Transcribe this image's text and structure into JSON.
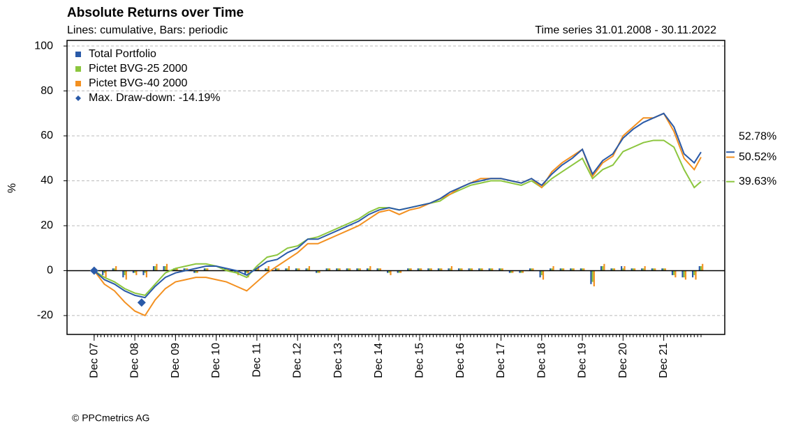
{
  "chart_data": {
    "type": "line",
    "title": "Absolute Returns over Time",
    "subtitle": "Lines: cumulative, Bars: periodic",
    "period": "Time series 31.01.2008 - 30.11.2022",
    "y_label": "%",
    "footer": "© PPCmetrics AG",
    "grid": true,
    "legend": "upper left",
    "xlim": [
      "2007-04",
      "2023-06"
    ],
    "ylim": [
      -28.4,
      102.5
    ],
    "yticks": [
      -20,
      0,
      20,
      40,
      60,
      80,
      100
    ],
    "xticks": [
      {
        "value": "2007-12",
        "label": "Dec 07"
      },
      {
        "value": "2008-12",
        "label": "Dec 08"
      },
      {
        "value": "2009-12",
        "label": "Dec 09"
      },
      {
        "value": "2010-12",
        "label": "Dec 10"
      },
      {
        "value": "2011-12",
        "label": "Dec 11"
      },
      {
        "value": "2012-12",
        "label": "Dec 12"
      },
      {
        "value": "2013-12",
        "label": "Dec 13"
      },
      {
        "value": "2014-12",
        "label": "Dec 14"
      },
      {
        "value": "2015-12",
        "label": "Dec 15"
      },
      {
        "value": "2016-12",
        "label": "Dec 16"
      },
      {
        "value": "2017-12",
        "label": "Dec 17"
      },
      {
        "value": "2018-12",
        "label": "Dec 18"
      },
      {
        "value": "2019-12",
        "label": "Dec 19"
      },
      {
        "value": "2020-12",
        "label": "Dec 20"
      },
      {
        "value": "2021-12",
        "label": "Dec 21"
      }
    ],
    "x": [
      "2007-12",
      "2008-03",
      "2008-06",
      "2008-09",
      "2008-12",
      "2009-03",
      "2009-06",
      "2009-09",
      "2009-12",
      "2010-03",
      "2010-06",
      "2010-09",
      "2010-12",
      "2011-03",
      "2011-06",
      "2011-09",
      "2011-12",
      "2012-03",
      "2012-06",
      "2012-09",
      "2012-12",
      "2013-03",
      "2013-06",
      "2013-09",
      "2013-12",
      "2014-03",
      "2014-06",
      "2014-09",
      "2014-12",
      "2015-03",
      "2015-06",
      "2015-09",
      "2015-12",
      "2016-03",
      "2016-06",
      "2016-09",
      "2016-12",
      "2017-03",
      "2017-06",
      "2017-09",
      "2017-12",
      "2018-03",
      "2018-06",
      "2018-09",
      "2018-12",
      "2019-03",
      "2019-06",
      "2019-09",
      "2019-12",
      "2020-03",
      "2020-06",
      "2020-09",
      "2020-12",
      "2021-03",
      "2021-06",
      "2021-09",
      "2021-12",
      "2022-03",
      "2022-06",
      "2022-09",
      "2022-11"
    ],
    "series": [
      {
        "name": "Total Portfolio",
        "color": "#2a5aa8",
        "last_value_label": "52.78%",
        "values": [
          0,
          -4,
          -6,
          -9,
          -11,
          -12,
          -7,
          -3,
          -1,
          0,
          1,
          2,
          2,
          1,
          0,
          -2,
          1,
          4,
          5,
          8,
          10,
          14,
          14,
          16,
          18,
          20,
          22,
          25,
          27,
          28,
          27,
          28,
          29,
          30,
          32,
          35,
          37,
          39,
          40,
          41,
          41,
          40,
          39,
          41,
          38,
          43,
          47,
          50,
          54,
          43,
          49,
          52,
          59,
          63,
          66,
          68,
          70,
          64,
          52,
          48,
          52.78
        ],
        "periodic": [
          null,
          -2,
          1,
          -3,
          -1,
          -2,
          2,
          2,
          1,
          1,
          -1,
          1,
          0,
          1,
          -1,
          -2,
          1,
          1,
          1,
          1,
          1,
          1,
          -1,
          1,
          1,
          1,
          1,
          1,
          1,
          -1,
          -1,
          1,
          1,
          1,
          1,
          1,
          1,
          1,
          1,
          1,
          1,
          -1,
          -1,
          1,
          -3,
          1,
          1,
          1,
          1,
          -6,
          2,
          1,
          2,
          1,
          1,
          1,
          1,
          -2,
          -3,
          -3,
          2
        ]
      },
      {
        "name": "Pictet BVG-25 2000",
        "color": "#8cc63e",
        "last_value_label": "39.63%",
        "values": [
          0,
          -3,
          -5,
          -8,
          -10,
          -11,
          -6,
          -1,
          1,
          2,
          3,
          3,
          2,
          0,
          -1,
          -3,
          2,
          6,
          7,
          10,
          11,
          14,
          15,
          17,
          19,
          21,
          23,
          26,
          28,
          28,
          27,
          28,
          29,
          30,
          31,
          34,
          36,
          38,
          39,
          40,
          40,
          39,
          38,
          40,
          37,
          41,
          44,
          47,
          50,
          41,
          45,
          47,
          53,
          55,
          57,
          58,
          58,
          55,
          45,
          37,
          39.63
        ],
        "periodic": [
          null,
          -1,
          1,
          -2,
          -1,
          -1,
          2,
          2,
          1,
          1,
          -1,
          1,
          0,
          1,
          -1,
          -1,
          1,
          1,
          1,
          1,
          1,
          1,
          -1,
          1,
          1,
          1,
          1,
          1,
          1,
          -1,
          -1,
          1,
          1,
          1,
          1,
          1,
          1,
          1,
          1,
          1,
          1,
          -1,
          -1,
          1,
          -2,
          1,
          1,
          1,
          1,
          -5,
          2,
          1,
          1,
          1,
          1,
          1,
          1,
          -2,
          -3,
          -2,
          2
        ]
      },
      {
        "name": "Pictet BVG-40 2000",
        "color": "#f39020",
        "last_value_label": "50.52%",
        "values": [
          0,
          -6,
          -9,
          -14,
          -18,
          -20,
          -13,
          -8,
          -5,
          -4,
          -3,
          -3,
          -4,
          -5,
          -7,
          -9,
          -5,
          -1,
          2,
          5,
          8,
          12,
          12,
          14,
          16,
          18,
          20,
          23,
          26,
          27,
          25,
          27,
          28,
          30,
          32,
          34,
          37,
          39,
          41,
          41,
          41,
          40,
          39,
          41,
          37,
          44,
          48,
          51,
          54,
          42,
          48,
          51,
          60,
          64,
          68,
          68,
          70,
          62,
          50,
          45,
          50.52
        ],
        "periodic": [
          null,
          -3,
          2,
          -4,
          -2,
          -3,
          3,
          3,
          1,
          1,
          -1,
          1,
          0,
          1,
          -2,
          -3,
          2,
          2,
          1,
          2,
          1,
          2,
          -1,
          1,
          1,
          1,
          1,
          2,
          1,
          -2,
          -1,
          1,
          1,
          1,
          1,
          2,
          1,
          1,
          1,
          1,
          1,
          -1,
          -1,
          1,
          -4,
          2,
          1,
          1,
          1,
          -7,
          3,
          1,
          2,
          1,
          2,
          1,
          1,
          -3,
          -4,
          -4,
          3
        ]
      }
    ],
    "drawdown": {
      "label": "Max. Draw-down: -14.19%",
      "color": "#2a5aa8",
      "points": [
        {
          "x": "2007-12",
          "value": 0
        },
        {
          "x": "2009-02",
          "value": -14.19
        }
      ]
    }
  }
}
